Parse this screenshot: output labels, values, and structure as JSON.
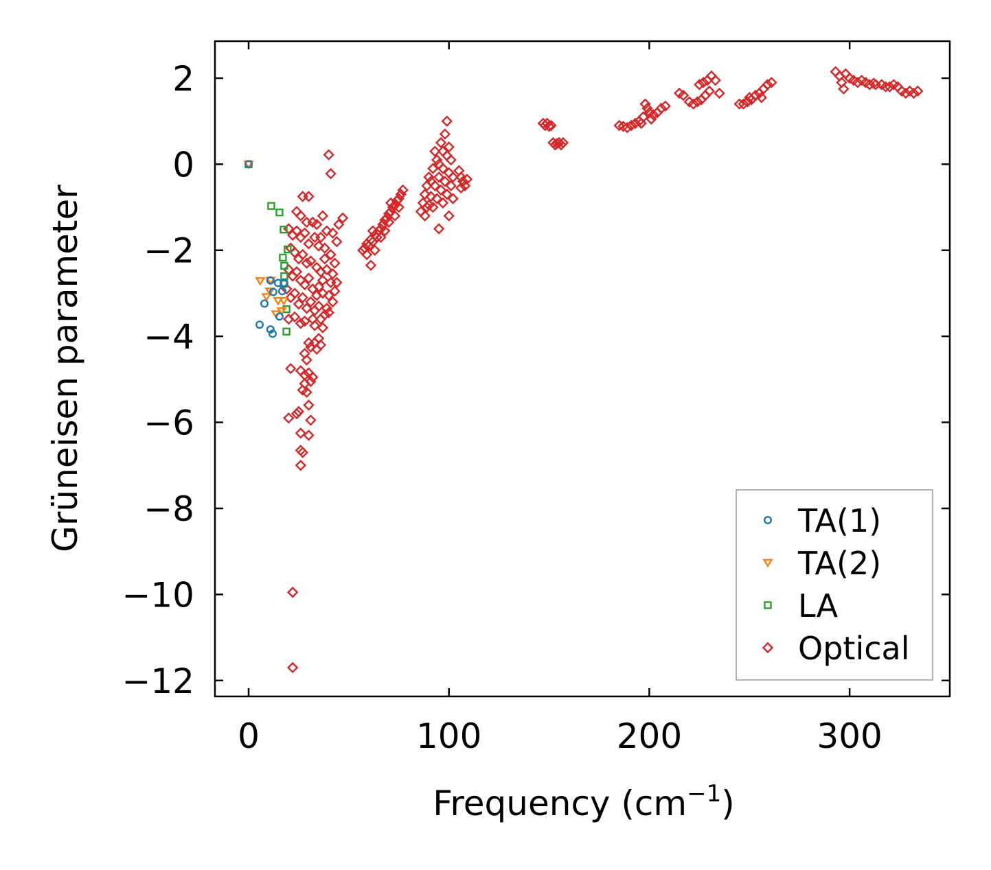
{
  "chart_data": {
    "type": "scatter",
    "title": "",
    "xlabel": "Frequency (cm",
    "xlabel_sup": "−1",
    "xlabel_end": ")",
    "ylabel": "Grüneisen parameter",
    "xlim": [
      -16.8,
      350
    ],
    "ylim": [
      -12.37,
      2.86
    ],
    "xticks": [
      0,
      100,
      200,
      300
    ],
    "xtick_labels": [
      "0",
      "100",
      "200",
      "300"
    ],
    "yticks": [
      2,
      0,
      -2,
      -4,
      -6,
      -8,
      -10,
      -12
    ],
    "ytick_labels": [
      "2",
      "0",
      "−2",
      "−4",
      "−6",
      "−8",
      "−10",
      "−12"
    ],
    "grid": false,
    "legend_position": "bottom-right",
    "series": [
      {
        "name": "TA(1)",
        "marker": "circle",
        "color": "#1f77b4",
        "points": [
          [
            0,
            0
          ],
          [
            10.9,
            -2.7
          ],
          [
            14.7,
            -2.76
          ],
          [
            17.8,
            -2.76
          ],
          [
            12.3,
            -2.97
          ],
          [
            16.8,
            -2.95
          ],
          [
            7.9,
            -3.24
          ],
          [
            15.4,
            -3.54
          ],
          [
            5.5,
            -3.73
          ],
          [
            10.9,
            -3.84
          ],
          [
            12,
            -3.94
          ]
        ]
      },
      {
        "name": "TA(2)",
        "marker": "triangle-down",
        "color": "#ff7f0e",
        "points": [
          [
            0,
            0
          ],
          [
            5.8,
            -2.71
          ],
          [
            11,
            -2.7
          ],
          [
            10.6,
            -2.95
          ],
          [
            8.9,
            -3.08
          ],
          [
            14.7,
            -3.17
          ],
          [
            17.5,
            -3.17
          ],
          [
            13.7,
            -3.48
          ],
          [
            16.5,
            -3.41
          ]
        ]
      },
      {
        "name": "LA",
        "marker": "square",
        "color": "#2ca02c",
        "points": [
          [
            0,
            0
          ],
          [
            11.3,
            -0.97
          ],
          [
            15.4,
            -1.12
          ],
          [
            17.5,
            -1.52
          ],
          [
            19.5,
            -1.98
          ],
          [
            17.1,
            -2.17
          ],
          [
            17.8,
            -2.36
          ],
          [
            17.8,
            -2.6
          ],
          [
            17.5,
            -2.78
          ],
          [
            18.9,
            -3.37
          ],
          [
            18.9,
            -3.89
          ]
        ]
      },
      {
        "name": "Optical",
        "marker": "diamond",
        "color": "#d62728",
        "points": [
          [
            22,
            -9.95
          ],
          [
            22,
            -11.7
          ],
          [
            26,
            -7.0
          ],
          [
            27,
            -6.7
          ],
          [
            26,
            -6.65
          ],
          [
            26,
            -6.25
          ],
          [
            30,
            -6.3
          ],
          [
            20,
            -5.9
          ],
          [
            24,
            -5.8
          ],
          [
            25,
            -5.75
          ],
          [
            31,
            -5.95
          ],
          [
            30,
            -5.6
          ],
          [
            29,
            -5.3
          ],
          [
            27,
            -5.25
          ],
          [
            28,
            -5.1
          ],
          [
            21,
            -4.75
          ],
          [
            26,
            -4.8
          ],
          [
            28,
            -4.9
          ],
          [
            30,
            -4.85
          ],
          [
            31,
            -5.05
          ],
          [
            32,
            -4.95
          ],
          [
            29,
            -4.55
          ],
          [
            28,
            -4.4
          ],
          [
            31,
            -4.25
          ],
          [
            33,
            -4.15
          ],
          [
            34,
            -4.3
          ],
          [
            35,
            -4.05
          ],
          [
            36,
            -4.2
          ],
          [
            30,
            -4.15
          ],
          [
            37,
            -3.8
          ],
          [
            33,
            -3.75
          ],
          [
            32,
            -3.6
          ],
          [
            40,
            0.22
          ],
          [
            41,
            -0.22
          ],
          [
            27,
            -0.75
          ],
          [
            30,
            -0.75
          ],
          [
            47,
            -1.25
          ],
          [
            45,
            -1.4
          ],
          [
            37,
            -1.2
          ],
          [
            24,
            -1.1
          ],
          [
            26,
            -1.2
          ],
          [
            29,
            -1.35
          ],
          [
            32,
            -1.35
          ],
          [
            34,
            -1.4
          ],
          [
            39,
            -1.55
          ],
          [
            42,
            -1.6
          ],
          [
            44,
            -1.8
          ],
          [
            20,
            -1.5
          ],
          [
            22,
            -1.65
          ],
          [
            24,
            -1.55
          ],
          [
            26,
            -1.7
          ],
          [
            28,
            -1.6
          ],
          [
            30,
            -1.85
          ],
          [
            33,
            -1.7
          ],
          [
            35,
            -1.9
          ],
          [
            38,
            -1.95
          ],
          [
            41,
            -2.1
          ],
          [
            43,
            -2.3
          ],
          [
            21,
            -1.95
          ],
          [
            23,
            -2.05
          ],
          [
            25,
            -2.2
          ],
          [
            27,
            -2.1
          ],
          [
            29,
            -2.3
          ],
          [
            31,
            -2.25
          ],
          [
            34,
            -2.4
          ],
          [
            36,
            -2.5
          ],
          [
            39,
            -2.45
          ],
          [
            42,
            -2.55
          ],
          [
            44,
            -2.75
          ],
          [
            20,
            -2.45
          ],
          [
            22,
            -2.6
          ],
          [
            24,
            -2.5
          ],
          [
            26,
            -2.7
          ],
          [
            28,
            -2.8
          ],
          [
            30,
            -2.65
          ],
          [
            32,
            -2.9
          ],
          [
            35,
            -2.85
          ],
          [
            37,
            -3.0
          ],
          [
            40,
            -3.05
          ],
          [
            42,
            -3.2
          ],
          [
            19,
            -2.9
          ],
          [
            21,
            -3.1
          ],
          [
            23,
            -3.0
          ],
          [
            25,
            -3.25
          ],
          [
            27,
            -3.1
          ],
          [
            29,
            -3.35
          ],
          [
            31,
            -3.2
          ],
          [
            33,
            -3.4
          ],
          [
            35,
            -3.3
          ],
          [
            38,
            -3.5
          ],
          [
            40,
            -3.45
          ],
          [
            20,
            -3.6
          ],
          [
            23,
            -3.55
          ],
          [
            26,
            -3.7
          ],
          [
            28,
            -3.65
          ],
          [
            36,
            -3.6
          ],
          [
            39,
            -3.35
          ],
          [
            37,
            -2.7
          ],
          [
            34,
            -3.05
          ],
          [
            38,
            -2.2
          ],
          [
            36,
            -1.7
          ],
          [
            41,
            -2.75
          ],
          [
            43,
            -2.95
          ],
          [
            57,
            -2.0
          ],
          [
            58,
            -1.95
          ],
          [
            59,
            -1.85
          ],
          [
            60,
            -1.9
          ],
          [
            61,
            -2.35
          ],
          [
            61,
            -1.75
          ],
          [
            62,
            -1.8
          ],
          [
            63,
            -1.65
          ],
          [
            64,
            -1.7
          ],
          [
            65,
            -1.55
          ],
          [
            66,
            -1.5
          ],
          [
            67,
            -1.4
          ],
          [
            68,
            -1.3
          ],
          [
            69,
            -1.25
          ],
          [
            70,
            -1.15
          ],
          [
            71,
            -1.1
          ],
          [
            72,
            -1.0
          ],
          [
            73,
            -0.95
          ],
          [
            74,
            -0.85
          ],
          [
            75,
            -0.8
          ],
          [
            76,
            -0.7
          ],
          [
            77,
            -0.6
          ],
          [
            66,
            -1.7
          ],
          [
            70,
            -1.35
          ],
          [
            73,
            -1.2
          ],
          [
            63,
            -2.0
          ],
          [
            68,
            -1.55
          ],
          [
            75,
            -1.0
          ],
          [
            59,
            -2.1
          ],
          [
            62,
            -1.55
          ],
          [
            71,
            -0.9
          ],
          [
            86,
            -1.1
          ],
          [
            87,
            -0.9
          ],
          [
            88,
            -0.7
          ],
          [
            88,
            -1.2
          ],
          [
            89,
            -0.5
          ],
          [
            90,
            -0.95
          ],
          [
            90,
            -0.3
          ],
          [
            91,
            -0.75
          ],
          [
            92,
            -0.1
          ],
          [
            92,
            -1.0
          ],
          [
            93,
            -0.5
          ],
          [
            93,
            0.3
          ],
          [
            94,
            -0.8
          ],
          [
            94,
            0.1
          ],
          [
            95,
            -0.3
          ],
          [
            95,
            -1.5
          ],
          [
            96,
            -0.6
          ],
          [
            96,
            0.5
          ],
          [
            97,
            -0.1
          ],
          [
            97,
            -0.9
          ],
          [
            98,
            0.7
          ],
          [
            98,
            -0.4
          ],
          [
            99,
            1.0
          ],
          [
            99,
            0.2
          ],
          [
            99,
            -0.7
          ],
          [
            100,
            0.4
          ],
          [
            100,
            -0.2
          ],
          [
            100,
            -1.2
          ],
          [
            101,
            -0.5
          ],
          [
            101,
            0.1
          ],
          [
            102,
            -0.3
          ],
          [
            102,
            -0.8
          ],
          [
            97,
            0.3
          ],
          [
            95,
            0.0
          ],
          [
            91,
            -0.4
          ],
          [
            89,
            -1.0
          ],
          [
            105,
            -0.15
          ],
          [
            106,
            -0.3
          ],
          [
            107,
            -0.4
          ],
          [
            108,
            -0.5
          ],
          [
            109,
            -0.35
          ],
          [
            106,
            -0.55
          ],
          [
            147,
            0.95
          ],
          [
            148,
            0.9
          ],
          [
            149,
            0.95
          ],
          [
            150,
            0.88
          ],
          [
            151,
            0.9
          ],
          [
            152,
            0.5
          ],
          [
            153,
            0.45
          ],
          [
            154,
            0.48
          ],
          [
            155,
            0.5
          ],
          [
            156,
            0.45
          ],
          [
            157,
            0.5
          ],
          [
            185,
            0.9
          ],
          [
            187,
            0.88
          ],
          [
            189,
            0.85
          ],
          [
            191,
            0.9
          ],
          [
            193,
            0.95
          ],
          [
            195,
            1.0
          ],
          [
            197,
            1.1
          ],
          [
            198,
            1.4
          ],
          [
            199,
            1.3
          ],
          [
            200,
            1.2
          ],
          [
            202,
            1.15
          ],
          [
            204,
            1.2
          ],
          [
            206,
            1.3
          ],
          [
            208,
            1.35
          ],
          [
            196,
            0.95
          ],
          [
            201,
            1.05
          ],
          [
            215,
            1.65
          ],
          [
            217,
            1.6
          ],
          [
            220,
            1.45
          ],
          [
            222,
            1.4
          ],
          [
            224,
            1.45
          ],
          [
            226,
            1.5
          ],
          [
            228,
            1.6
          ],
          [
            225,
            1.85
          ],
          [
            227,
            1.9
          ],
          [
            229,
            1.95
          ],
          [
            231,
            2.05
          ],
          [
            233,
            1.95
          ],
          [
            235,
            1.65
          ],
          [
            230,
            1.7
          ],
          [
            245,
            1.4
          ],
          [
            247,
            1.4
          ],
          [
            249,
            1.45
          ],
          [
            251,
            1.5
          ],
          [
            253,
            1.6
          ],
          [
            255,
            1.65
          ],
          [
            257,
            1.75
          ],
          [
            259,
            1.85
          ],
          [
            261,
            1.9
          ],
          [
            250,
            1.55
          ],
          [
            256,
            1.55
          ],
          [
            293,
            2.15
          ],
          [
            295,
            2.05
          ],
          [
            296,
            1.9
          ],
          [
            297,
            1.75
          ],
          [
            298,
            2.1
          ],
          [
            300,
            2.0
          ],
          [
            302,
            1.95
          ],
          [
            304,
            1.9
          ],
          [
            306,
            1.95
          ],
          [
            308,
            1.9
          ],
          [
            310,
            1.85
          ],
          [
            313,
            1.85
          ],
          [
            316,
            1.85
          ],
          [
            320,
            1.8
          ],
          [
            322,
            1.85
          ],
          [
            324,
            1.8
          ],
          [
            326,
            1.7
          ],
          [
            328,
            1.65
          ],
          [
            330,
            1.7
          ],
          [
            332,
            1.65
          ],
          [
            334,
            1.7
          ],
          [
            318,
            1.8
          ],
          [
            312,
            1.88
          ]
        ]
      }
    ]
  }
}
